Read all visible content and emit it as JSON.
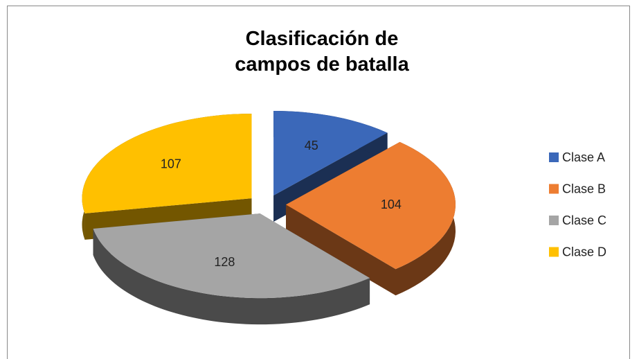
{
  "chart_data": {
    "type": "pie",
    "title": "Clasificación de campos de batalla",
    "categories": [
      "Clase A",
      "Clase B",
      "Clase C",
      "Clase D"
    ],
    "values": [
      45,
      104,
      128,
      107
    ],
    "colors": [
      "#3b68b9",
      "#ed7d31",
      "#a5a5a5",
      "#ffc000"
    ],
    "legend": "right"
  }
}
